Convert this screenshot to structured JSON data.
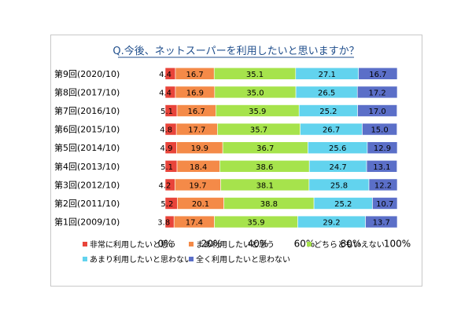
{
  "chart_data": {
    "type": "bar",
    "orientation": "horizontal",
    "stacked": true,
    "title": "Q.今後、ネットスーパーを利用したいと思いますか？",
    "categories": [
      "第9回(2020/10)",
      "第8回(2017/10)",
      "第7回(2016/10)",
      "第6回(2015/10)",
      "第5回(2014/10)",
      "第4回(2013/10)",
      "第3回(2012/10)",
      "第2回(2011/10)",
      "第1回(2009/10)"
    ],
    "series": [
      {
        "name": "非常に利用したいと思う",
        "color": "#e8443a",
        "values": [
          4.4,
          4.4,
          5.1,
          4.8,
          4.9,
          5.1,
          4.2,
          5.2,
          3.8
        ]
      },
      {
        "name": "まあ利用したいと思う",
        "color": "#f48a48",
        "values": [
          16.7,
          16.9,
          16.7,
          17.7,
          19.9,
          18.4,
          19.7,
          20.1,
          17.4
        ]
      },
      {
        "name": "どちらともいえない",
        "color": "#a6e34c",
        "values": [
          35.1,
          35.0,
          35.9,
          35.7,
          36.7,
          38.6,
          38.1,
          38.8,
          35.9
        ]
      },
      {
        "name": "あまり利用したいと思わない",
        "color": "#62d3ee",
        "values": [
          27.1,
          26.5,
          25.2,
          26.7,
          25.6,
          24.7,
          25.8,
          25.2,
          29.2
        ]
      },
      {
        "name": "全く利用したいと思わない",
        "color": "#5b6fc8",
        "values": [
          16.7,
          17.2,
          17.0,
          15.0,
          12.9,
          13.1,
          12.2,
          10.7,
          13.7
        ]
      }
    ],
    "xlim": [
      0,
      100
    ],
    "x_ticks": [
      "0%",
      "20%",
      "40%",
      "60%",
      "80%",
      "100%"
    ],
    "legend_position": "bottom",
    "grid": false
  }
}
